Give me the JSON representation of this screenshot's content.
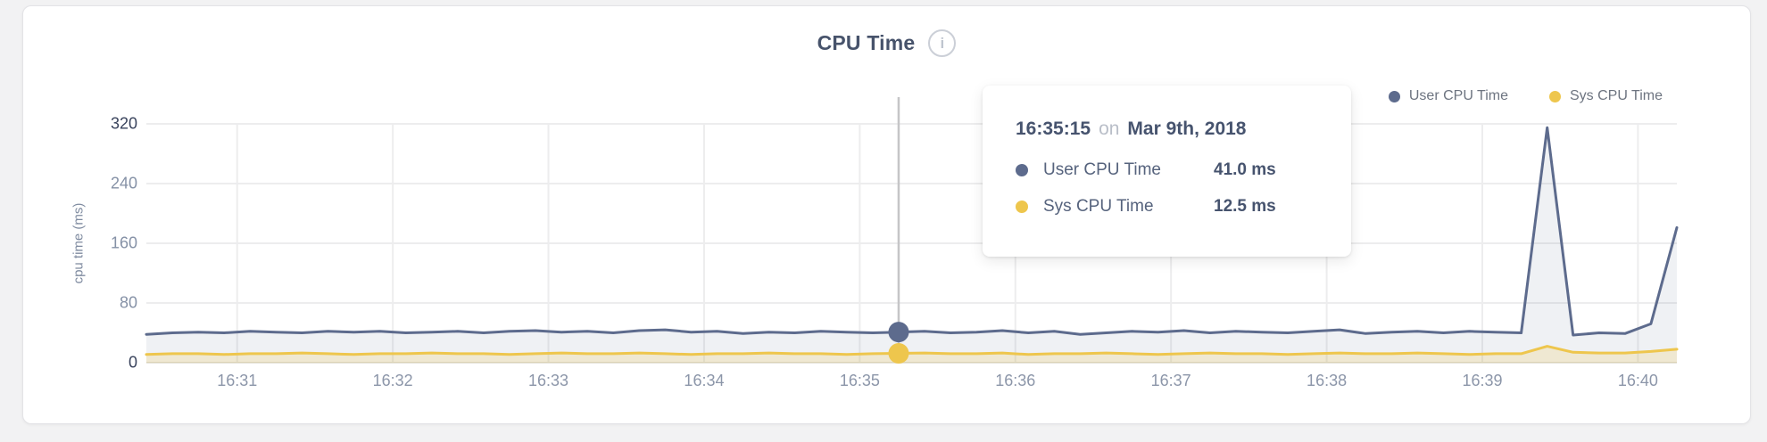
{
  "header": {
    "title": "CPU Time",
    "info_icon": "i"
  },
  "legend": [
    {
      "label": "User CPU Time",
      "color": "#5d6b8d"
    },
    {
      "label": "Sys CPU Time",
      "color": "#eec64d"
    }
  ],
  "tooltip": {
    "time": "16:35:15",
    "connector": "on",
    "date": "Mar 9th, 2018",
    "rows": [
      {
        "label": "User CPU Time",
        "value": "41.0 ms",
        "color": "#5d6b8d"
      },
      {
        "label": "Sys CPU Time",
        "value": "12.5 ms",
        "color": "#eec64d"
      }
    ]
  },
  "colors": {
    "user_line": "#5d6b8d",
    "sys_line": "#eec64d",
    "user_fill": "rgba(99,113,146,0.10)",
    "sys_fill": "rgba(238,198,77,0.20)",
    "grid": "#ededee",
    "baseline": "#e6e3da",
    "crosshair": "#c5c5c7"
  },
  "chart_data": {
    "type": "area",
    "title": "CPU Time",
    "ylabel": "cpu time (ms)",
    "ylim": [
      0,
      320
    ],
    "y_ticks": [
      0,
      80,
      160,
      240,
      320
    ],
    "x_ticks": [
      "16:31",
      "16:32",
      "16:33",
      "16:34",
      "16:35",
      "16:36",
      "16:37",
      "16:38",
      "16:39",
      "16:40"
    ],
    "grid": true,
    "legend_position": "top-right",
    "x": [
      "16:30:25",
      "16:30:35",
      "16:30:45",
      "16:30:55",
      "16:31:05",
      "16:31:15",
      "16:31:25",
      "16:31:35",
      "16:31:45",
      "16:31:55",
      "16:32:05",
      "16:32:15",
      "16:32:25",
      "16:32:35",
      "16:32:45",
      "16:32:55",
      "16:33:05",
      "16:33:15",
      "16:33:25",
      "16:33:35",
      "16:33:45",
      "16:33:55",
      "16:34:05",
      "16:34:15",
      "16:34:25",
      "16:34:35",
      "16:34:45",
      "16:34:55",
      "16:35:05",
      "16:35:15",
      "16:35:25",
      "16:35:35",
      "16:35:45",
      "16:35:55",
      "16:36:05",
      "16:36:15",
      "16:36:25",
      "16:36:35",
      "16:36:45",
      "16:36:55",
      "16:37:05",
      "16:37:15",
      "16:37:25",
      "16:37:35",
      "16:37:45",
      "16:37:55",
      "16:38:05",
      "16:38:15",
      "16:38:25",
      "16:38:35",
      "16:38:45",
      "16:38:55",
      "16:39:05",
      "16:39:15",
      "16:39:25",
      "16:39:35",
      "16:39:45",
      "16:39:55",
      "16:40:05",
      "16:40:15"
    ],
    "series": [
      {
        "name": "User CPU Time",
        "color": "#5d6b8d",
        "unit": "ms",
        "values": [
          38,
          40,
          41,
          40,
          42,
          41,
          40,
          42,
          41,
          42,
          40,
          41,
          42,
          40,
          42,
          43,
          41,
          42,
          40,
          43,
          44,
          41,
          42,
          39,
          41,
          40,
          42,
          41,
          40,
          41,
          42,
          40,
          41,
          43,
          40,
          42,
          38,
          40,
          42,
          41,
          43,
          40,
          42,
          41,
          40,
          42,
          44,
          39,
          41,
          42,
          40,
          42,
          41,
          40,
          315,
          37,
          40,
          39,
          52,
          181
        ]
      },
      {
        "name": "Sys CPU Time",
        "color": "#eec64d",
        "unit": "ms",
        "values": [
          11,
          12,
          12,
          11,
          12,
          12,
          13,
          12,
          11,
          12,
          12,
          13,
          12,
          12,
          11,
          12,
          13,
          12,
          12,
          13,
          12,
          11,
          12,
          12,
          13,
          12,
          12,
          11,
          12,
          12.5,
          13,
          12,
          12,
          13,
          11,
          12,
          12,
          13,
          12,
          11,
          12,
          13,
          12,
          12,
          11,
          12,
          13,
          12,
          12,
          13,
          12,
          11,
          12,
          12,
          22,
          14,
          13,
          13,
          15,
          18
        ]
      }
    ],
    "selected": {
      "index": 29,
      "time": "16:35:15",
      "date": "Mar 9th, 2018",
      "user_ms": 41.0,
      "sys_ms": 12.5
    }
  }
}
